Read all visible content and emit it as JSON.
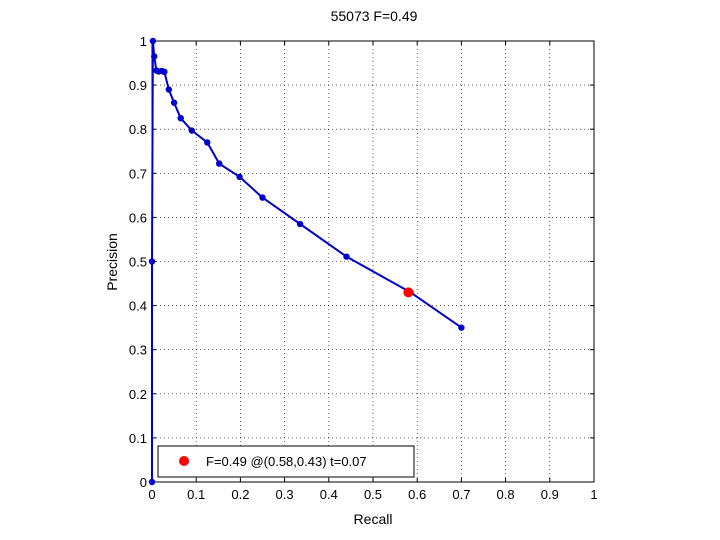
{
  "chart_data": {
    "type": "line",
    "title": "55073 F=0.49",
    "xlabel": "Recall",
    "ylabel": "Precision",
    "xlim": [
      0,
      1
    ],
    "ylim": [
      0,
      1
    ],
    "xticks": [
      "0",
      "0.1",
      "0.2",
      "0.3",
      "0.4",
      "0.5",
      "0.6",
      "0.7",
      "0.8",
      "0.9",
      "1"
    ],
    "yticks": [
      "0",
      "0.1",
      "0.2",
      "0.3",
      "0.4",
      "0.5",
      "0.6",
      "0.7",
      "0.8",
      "0.9",
      "1"
    ],
    "grid": true,
    "legend_position": "bottom-left",
    "series": [
      {
        "color": "#0000cc",
        "points": [
          [
            0.0,
            0.0
          ],
          [
            0.0,
            0.5
          ],
          [
            0.002,
            1.0
          ],
          [
            0.005,
            0.965
          ],
          [
            0.01,
            0.933
          ],
          [
            0.015,
            0.931
          ],
          [
            0.022,
            0.932
          ],
          [
            0.028,
            0.93
          ],
          [
            0.038,
            0.89
          ],
          [
            0.05,
            0.86
          ],
          [
            0.065,
            0.825
          ],
          [
            0.09,
            0.797
          ],
          [
            0.125,
            0.77
          ],
          [
            0.152,
            0.722
          ],
          [
            0.198,
            0.692
          ],
          [
            0.25,
            0.645
          ],
          [
            0.335,
            0.585
          ],
          [
            0.44,
            0.511
          ],
          [
            0.585,
            0.43
          ],
          [
            0.7,
            0.35
          ]
        ]
      }
    ],
    "highlight": {
      "x": 0.58,
      "y": 0.43,
      "color": "#ff0000"
    },
    "legend": {
      "label": "F=0.49 @(0.58,0.43) t=0.07",
      "marker_color": "#ff0000"
    }
  }
}
